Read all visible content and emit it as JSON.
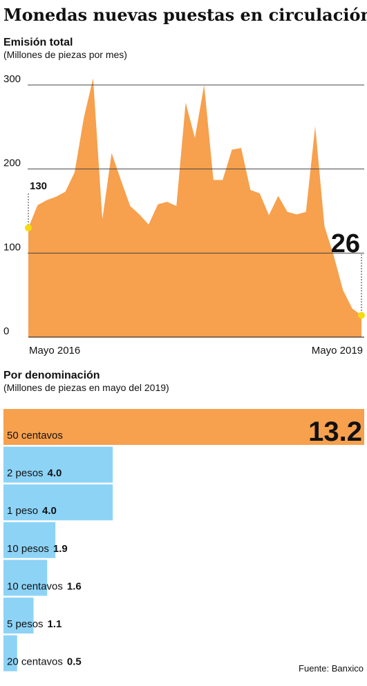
{
  "title": "Monedas nuevas puestas en circulación",
  "source": "Fuente: Banxico",
  "chart_data": [
    {
      "type": "area",
      "title": "Emisión total",
      "subtitle": "(Millones de piezas por mes)",
      "categories": [
        "Mayo 2016",
        null,
        null,
        null,
        null,
        null,
        null,
        null,
        null,
        null,
        null,
        null,
        null,
        null,
        null,
        null,
        null,
        null,
        null,
        null,
        null,
        null,
        null,
        null,
        null,
        null,
        null,
        null,
        null,
        null,
        null,
        null,
        null,
        null,
        null,
        null,
        "Mayo 2019"
      ],
      "values": [
        130,
        157,
        163,
        167,
        173,
        196,
        261,
        308,
        140,
        219,
        187,
        156,
        146,
        134,
        158,
        161,
        156,
        279,
        237,
        300,
        187,
        187,
        223,
        225,
        175,
        171,
        145,
        168,
        149,
        146,
        149,
        251,
        132,
        97,
        56,
        34,
        26
      ],
      "color": "#f7a04d",
      "point_color": "#f3dc0c",
      "ylim": [
        0,
        315
      ],
      "yticks": [
        0,
        100,
        200,
        300
      ],
      "grid": true
    },
    {
      "type": "hbar",
      "title": "Por denominación",
      "subtitle": "(Millones de piezas en mayo del 2019)",
      "categories": [
        "50 centavos",
        "2 pesos",
        "1 peso",
        "10 pesos",
        "10 centavos",
        "5 pesos",
        "20 centavos"
      ],
      "values": [
        13.2,
        4.0,
        4.0,
        1.9,
        1.6,
        1.1,
        0.5
      ],
      "value_labels": [
        "13.2",
        "4.0",
        "4.0",
        "1.9",
        "1.6",
        "1.1",
        "0.5"
      ],
      "colors": [
        "#f7a04d",
        "#8dd3f6",
        "#8dd3f6",
        "#8dd3f6",
        "#8dd3f6",
        "#8dd3f6",
        "#8dd3f6"
      ]
    }
  ]
}
